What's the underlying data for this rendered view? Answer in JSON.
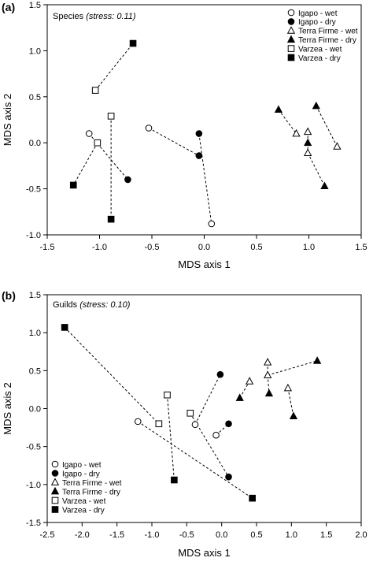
{
  "chart_data": [
    {
      "type": "scatter",
      "panel_label": "(a)",
      "title_prefix": "Species",
      "title_stat": "(stress: 0.11)",
      "xlabel": "MDS axis 1",
      "ylabel": "MDS axis 2",
      "xlim": [
        -1.5,
        1.5
      ],
      "ylim": [
        -1.0,
        1.5
      ],
      "xticks": [
        "-1.5",
        "-1.0",
        "-0.5",
        "0.0",
        "0.5",
        "1.0",
        "1.5"
      ],
      "yticks": [
        "-1.0",
        "-0.5",
        "0.0",
        "0.5",
        "1.0",
        "1.5"
      ],
      "legend_position": "top-right",
      "series": [
        {
          "name": "Igapo - wet",
          "marker": "circle-open",
          "points": [
            [
              -1.1,
              0.1
            ],
            [
              -0.53,
              0.16
            ],
            [
              0.07,
              -0.88
            ]
          ]
        },
        {
          "name": "Igapo - dry",
          "marker": "circle-filled",
          "points": [
            [
              -0.73,
              -0.4
            ],
            [
              -0.05,
              0.1
            ],
            [
              -0.05,
              -0.14
            ]
          ]
        },
        {
          "name": "Terra Firme - wet",
          "marker": "triangle-open",
          "points": [
            [
              0.88,
              0.1
            ],
            [
              0.99,
              0.12
            ],
            [
              0.99,
              -0.11
            ],
            [
              1.27,
              -0.04
            ]
          ]
        },
        {
          "name": "Terra Firme - dry",
          "marker": "triangle-filled",
          "points": [
            [
              0.71,
              0.36
            ],
            [
              0.99,
              0.0
            ],
            [
              1.07,
              0.4
            ],
            [
              1.15,
              -0.47
            ]
          ]
        },
        {
          "name": "Varzea - wet",
          "marker": "square-open",
          "points": [
            [
              -1.04,
              0.57
            ],
            [
              -1.02,
              0.0
            ],
            [
              -0.89,
              0.29
            ]
          ]
        },
        {
          "name": "Varzea - dry",
          "marker": "square-filled",
          "points": [
            [
              -1.25,
              -0.46
            ],
            [
              -0.89,
              -0.83
            ],
            [
              -0.68,
              1.08
            ]
          ]
        }
      ],
      "links": [
        [
          [
            -1.04,
            0.57
          ],
          [
            -0.68,
            1.08
          ]
        ],
        [
          [
            -1.1,
            0.1
          ],
          [
            -0.73,
            -0.4
          ]
        ],
        [
          [
            -1.02,
            0.0
          ],
          [
            -1.25,
            -0.46
          ]
        ],
        [
          [
            -0.89,
            0.29
          ],
          [
            -0.89,
            -0.83
          ]
        ],
        [
          [
            -0.53,
            0.16
          ],
          [
            -0.05,
            -0.14
          ]
        ],
        [
          [
            -0.05,
            0.1
          ],
          [
            0.07,
            -0.88
          ]
        ],
        [
          [
            0.71,
            0.36
          ],
          [
            0.88,
            0.1
          ]
        ],
        [
          [
            0.99,
            0.12
          ],
          [
            0.99,
            0.0
          ]
        ],
        [
          [
            0.99,
            0.0
          ],
          [
            0.99,
            -0.11
          ]
        ],
        [
          [
            1.07,
            0.4
          ],
          [
            1.27,
            -0.04
          ]
        ],
        [
          [
            0.99,
            -0.11
          ],
          [
            1.15,
            -0.47
          ]
        ]
      ]
    },
    {
      "type": "scatter",
      "panel_label": "(b)",
      "title_prefix": "Guilds",
      "title_stat": "(stress: 0.10)",
      "xlabel": "MDS axis 1",
      "ylabel": "MDS axis 2",
      "xlim": [
        -2.5,
        2.0
      ],
      "ylim": [
        -1.5,
        1.5
      ],
      "xticks": [
        "-2.5",
        "-2.0",
        "-1.5",
        "-1.0",
        "-0.5",
        "0.0",
        "0.5",
        "1.0",
        "1.5",
        "2.0"
      ],
      "yticks": [
        "-1.5",
        "-1.0",
        "-0.5",
        "0.0",
        "0.5",
        "1.0",
        "1.5"
      ],
      "legend_position": "bottom-left",
      "series": [
        {
          "name": "Igapo - wet",
          "marker": "circle-open",
          "points": [
            [
              -1.2,
              -0.17
            ],
            [
              -0.38,
              -0.21
            ],
            [
              -0.08,
              -0.35
            ]
          ]
        },
        {
          "name": "Igapo - dry",
          "marker": "circle-filled",
          "points": [
            [
              -0.02,
              0.45
            ],
            [
              0.1,
              -0.2
            ],
            [
              0.1,
              -0.9
            ]
          ]
        },
        {
          "name": "Terra Firme - wet",
          "marker": "triangle-open",
          "points": [
            [
              0.4,
              0.36
            ],
            [
              0.66,
              0.61
            ],
            [
              0.66,
              0.44
            ],
            [
              0.95,
              0.27
            ]
          ]
        },
        {
          "name": "Terra Firme - dry",
          "marker": "triangle-filled",
          "points": [
            [
              0.26,
              0.14
            ],
            [
              0.68,
              0.2
            ],
            [
              1.03,
              -0.1
            ],
            [
              1.37,
              0.63
            ]
          ]
        },
        {
          "name": "Varzea - wet",
          "marker": "square-open",
          "points": [
            [
              -0.9,
              -0.2
            ],
            [
              -0.78,
              0.18
            ],
            [
              -0.45,
              -0.06
            ]
          ]
        },
        {
          "name": "Varzea - dry",
          "marker": "square-filled",
          "points": [
            [
              -2.25,
              1.07
            ],
            [
              -0.68,
              -0.94
            ],
            [
              0.44,
              -1.18
            ]
          ]
        }
      ],
      "links": [
        [
          [
            -2.25,
            1.07
          ],
          [
            -0.9,
            -0.2
          ]
        ],
        [
          [
            -0.78,
            0.18
          ],
          [
            -0.68,
            -0.94
          ]
        ],
        [
          [
            -0.45,
            -0.06
          ],
          [
            0.1,
            -0.9
          ]
        ],
        [
          [
            -1.2,
            -0.17
          ],
          [
            0.44,
            -1.18
          ]
        ],
        [
          [
            -0.38,
            -0.21
          ],
          [
            -0.02,
            0.45
          ]
        ],
        [
          [
            -0.08,
            -0.35
          ],
          [
            0.1,
            -0.2
          ]
        ],
        [
          [
            0.26,
            0.14
          ],
          [
            0.4,
            0.36
          ]
        ],
        [
          [
            0.66,
            0.61
          ],
          [
            0.66,
            0.44
          ]
        ],
        [
          [
            0.66,
            0.44
          ],
          [
            0.68,
            0.2
          ]
        ],
        [
          [
            0.66,
            0.44
          ],
          [
            1.37,
            0.63
          ]
        ],
        [
          [
            0.95,
            0.27
          ],
          [
            1.03,
            -0.1
          ]
        ]
      ]
    }
  ]
}
